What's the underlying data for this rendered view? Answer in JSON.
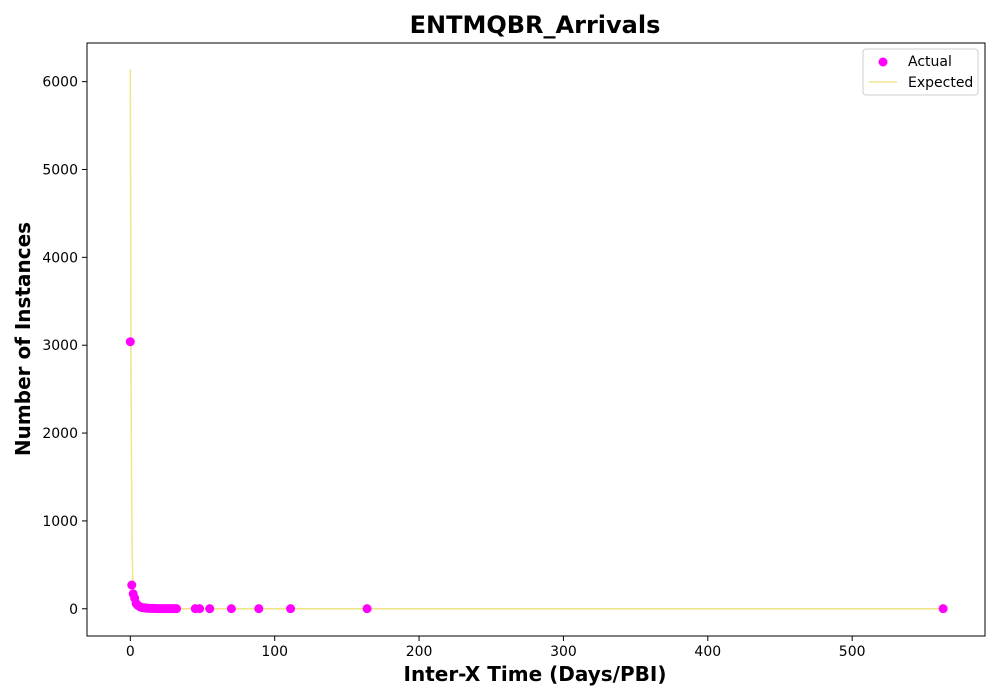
{
  "chart_data": {
    "type": "scatter",
    "title": "ENTMQBR_Arrivals",
    "xlabel": "Inter-X Time (Days/PBI)",
    "ylabel": "Number of Instances",
    "xlim": [
      -30,
      592
    ],
    "ylim": [
      -310,
      6440
    ],
    "xticks": [
      0,
      100,
      200,
      300,
      400,
      500
    ],
    "yticks": [
      0,
      1000,
      2000,
      3000,
      4000,
      5000,
      6000
    ],
    "legend": {
      "placement": "top-right",
      "entries": [
        "Actual",
        "Expected"
      ]
    },
    "colors": {
      "actual": "#ff00ff",
      "expected": "#f0e68c"
    },
    "series": [
      {
        "name": "Actual",
        "kind": "scatter",
        "x": [
          0,
          1,
          2,
          3,
          4,
          5,
          6,
          7,
          8,
          9,
          10,
          11,
          12,
          13,
          14,
          15,
          16,
          17,
          18,
          19,
          20,
          21,
          22,
          23,
          24,
          25,
          26,
          27,
          28,
          29,
          30,
          31,
          32,
          45,
          48,
          55,
          70,
          89,
          111,
          164,
          563
        ],
        "y": [
          3040,
          270,
          170,
          120,
          60,
          40,
          30,
          20,
          15,
          12,
          10,
          8,
          6,
          5,
          5,
          4,
          4,
          3,
          3,
          2,
          2,
          2,
          2,
          1,
          1,
          1,
          1,
          1,
          1,
          1,
          1,
          1,
          1,
          1,
          1,
          1,
          1,
          1,
          1,
          1,
          1
        ]
      },
      {
        "name": "Expected",
        "kind": "line",
        "x": [
          0,
          0.5,
          1,
          1.5,
          2,
          2.5,
          3,
          4,
          5,
          6,
          8,
          10,
          15,
          20,
          30,
          50,
          100,
          200,
          300,
          400,
          500,
          563
        ],
        "y": [
          6140,
          2600,
          1100,
          470,
          200,
          90,
          40,
          15,
          6,
          3,
          1,
          0.5,
          0,
          0,
          0,
          0,
          0,
          0,
          0,
          0,
          0,
          0
        ]
      }
    ]
  }
}
